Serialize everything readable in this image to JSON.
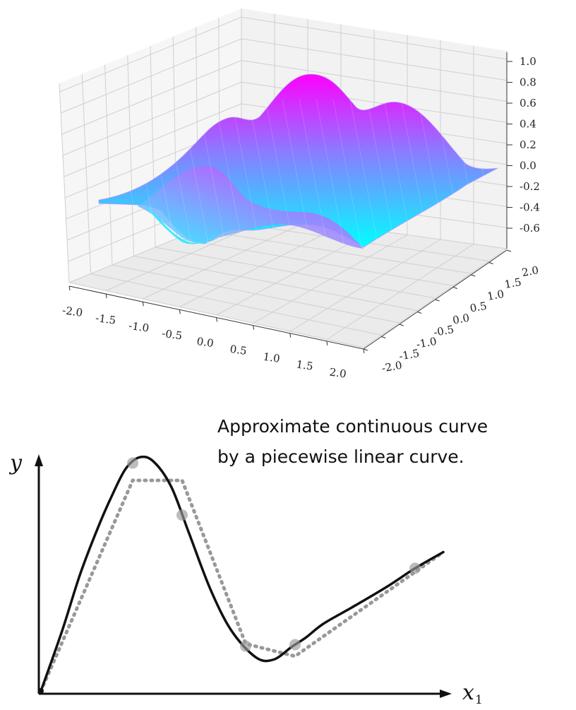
{
  "chart_data": [
    {
      "type": "surface",
      "title": "",
      "x_ticks": [
        "-2.0",
        "-1.5",
        "-1.0",
        "-0.5",
        "0.0",
        "0.5",
        "1.0",
        "1.5",
        "2.0"
      ],
      "y_ticks": [
        "-2.0",
        "-1.5",
        "-1.0",
        "-0.5",
        "0.0",
        "0.5",
        "1.0",
        "1.5",
        "2.0"
      ],
      "z_ticks": [
        "1.0",
        "0.8",
        "0.6",
        "0.4",
        "0.2",
        "0.0",
        "-0.2",
        "-0.4",
        "-0.6"
      ],
      "xlim": [
        -2,
        2
      ],
      "ylim": [
        -2,
        2
      ],
      "zlim": [
        -0.7,
        1.0
      ],
      "grid": true,
      "colormap": [
        "#00ffff",
        "#ff00ff"
      ]
    },
    {
      "type": "line",
      "annotation": [
        "Approximate continuous curve",
        "by a piecewise linear curve."
      ],
      "ylabel": "y",
      "xlabel": "x",
      "xlabel_subscript": "1",
      "series": [
        {
          "style": "solid",
          "color": "#111111",
          "x": [
            0,
            0.3,
            0.55,
            0.8,
            1.0,
            1.2,
            1.4,
            1.6,
            1.85,
            2.1,
            2.4,
            2.7,
            3.05,
            3.3,
            3.55,
            3.75,
            4.0,
            4.4,
            4.9,
            5.3,
            5.7
          ],
          "y": [
            0.0,
            1.3,
            2.5,
            3.5,
            4.2,
            4.8,
            5.05,
            4.95,
            4.4,
            3.4,
            2.2,
            1.3,
            0.72,
            0.68,
            0.95,
            1.15,
            1.45,
            1.8,
            2.25,
            2.65,
            3.0
          ]
        },
        {
          "style": "dotted",
          "color": "#999999",
          "x": [
            0,
            1.3,
            2.0,
            2.9,
            3.6,
            5.7
          ],
          "y": [
            0.0,
            4.55,
            4.55,
            1.02,
            0.75,
            3.0
          ]
        }
      ],
      "breakpoints_x": [
        1.3,
        2.0,
        2.9,
        3.6,
        5.3
      ]
    }
  ]
}
